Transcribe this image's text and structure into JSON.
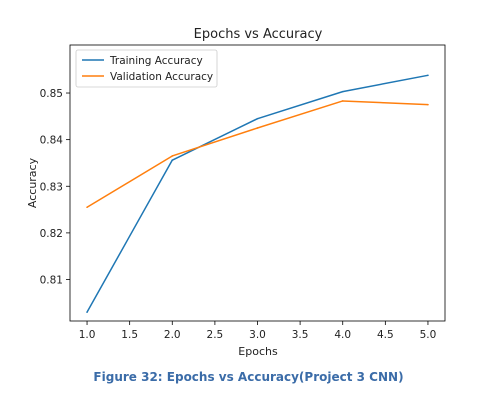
{
  "figure_caption": "Figure 32: Epochs vs Accuracy(Project 3 CNN)",
  "chart_data": {
    "type": "line",
    "title": "Epochs vs Accuracy",
    "xlabel": "Epochs",
    "ylabel": "Accuracy",
    "x": [
      1.0,
      2.0,
      3.0,
      4.0,
      5.0
    ],
    "xlim": [
      0.8,
      5.2
    ],
    "ylim": [
      0.8011,
      0.8603
    ],
    "xticks": [
      1.0,
      1.5,
      2.0,
      2.5,
      3.0,
      3.5,
      4.0,
      4.5,
      5.0
    ],
    "xtick_labels": [
      "1.0",
      "1.5",
      "2.0",
      "2.5",
      "3.0",
      "3.5",
      "4.0",
      "4.5",
      "5.0"
    ],
    "yticks": [
      0.81,
      0.82,
      0.83,
      0.84,
      0.85
    ],
    "ytick_labels": [
      "0.81",
      "0.82",
      "0.83",
      "0.84",
      "0.85"
    ],
    "grid": false,
    "legend_position": "top-left",
    "series": [
      {
        "name": "Training Accuracy",
        "color": "#1f77b4",
        "values": [
          0.803,
          0.8356,
          0.8445,
          0.8503,
          0.8538
        ]
      },
      {
        "name": "Validation Accuracy",
        "color": "#ff7f0e",
        "values": [
          0.8255,
          0.8365,
          0.8425,
          0.8483,
          0.8475
        ]
      }
    ]
  }
}
